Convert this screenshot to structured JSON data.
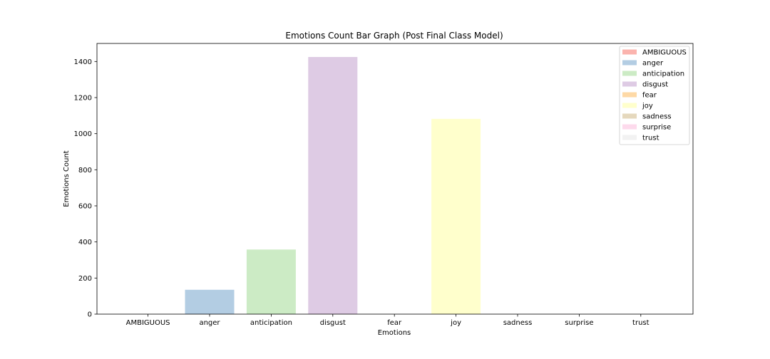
{
  "chart_data": {
    "type": "bar",
    "title": "Emotions Count Bar Graph (Post Final Class Model)",
    "xlabel": "Emotions",
    "ylabel": "Emotions Count",
    "categories": [
      "AMBIGUOUS",
      "anger",
      "anticipation",
      "disgust",
      "fear",
      "joy",
      "sadness",
      "surprise",
      "trust"
    ],
    "values": [
      0,
      135,
      358,
      1425,
      0,
      1082,
      0,
      0,
      0
    ],
    "colors": [
      "#fbb4ae",
      "#b3cde3",
      "#ccebc5",
      "#decbe4",
      "#fed9a6",
      "#ffffcc",
      "#e5d8bd",
      "#fddaec",
      "#f2f2f2"
    ],
    "ylim": [
      0,
      1500
    ],
    "yticks": [
      0,
      200,
      400,
      600,
      800,
      1000,
      1200,
      1400
    ],
    "legend": {
      "position": "top-right",
      "entries": [
        "AMBIGUOUS",
        "anger",
        "anticipation",
        "disgust",
        "fear",
        "joy",
        "sadness",
        "surprise",
        "trust"
      ]
    },
    "grid": false
  }
}
